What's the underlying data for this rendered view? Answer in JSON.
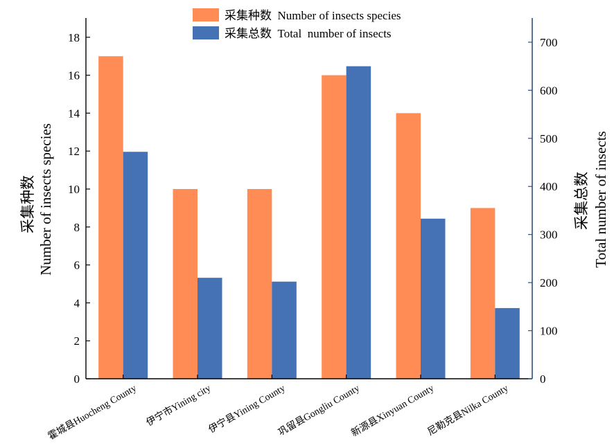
{
  "chart_data": {
    "type": "bar",
    "categories": [
      "霍城县Huocheng County",
      "伊宁市Yining city",
      "伊宁县Yining County",
      "巩留县Gongliu County",
      "新源县Xinyuan County",
      "尼勒克县Nilka County"
    ],
    "series": [
      {
        "name": "采集种数  Number of insects species",
        "axis": "left",
        "color": "#FF8C55",
        "values": [
          17,
          10,
          10,
          16,
          14,
          9
        ]
      },
      {
        "name": "采集总数  Total  number of insects",
        "axis": "right",
        "color": "#4472B4",
        "values": [
          472,
          210,
          202,
          650,
          333,
          147
        ]
      }
    ],
    "ylabel_left": [
      "采集种数",
      "Number of insects species"
    ],
    "ylabel_right": [
      "采集总数",
      "Total number of insects"
    ],
    "ylim_left": [
      0,
      19
    ],
    "ylim_right": [
      0,
      750
    ],
    "yticks_left": [
      "0",
      "2",
      "4",
      "6",
      "8",
      "10",
      "12",
      "14",
      "16",
      "18"
    ],
    "yticks_right": [
      "0",
      "100",
      "200",
      "300",
      "400",
      "500",
      "600",
      "700"
    ],
    "right_axis_color": "#2F4F7F",
    "legend_position": "top-center",
    "grid": false
  }
}
